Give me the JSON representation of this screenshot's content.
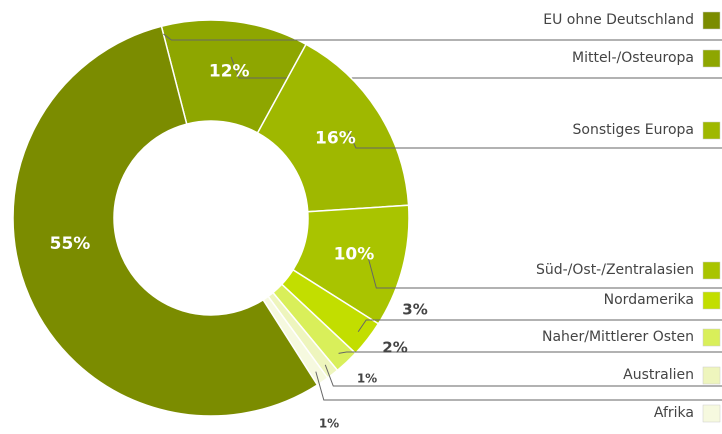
{
  "chart_data": {
    "type": "donut",
    "categories": [
      "EU ohne Deutschland",
      "Mittel-/Osteuropa",
      "Sonstiges Europa",
      "Süd-/Ost-/Zentralasien",
      "Nordamerika",
      "Naher/Mittlerer Osten",
      "Australien",
      "Afrika"
    ],
    "values": [
      55,
      12,
      16,
      10,
      3,
      2,
      1,
      1
    ],
    "value_labels": [
      "55%",
      "12%",
      "16%",
      "10%",
      "3%",
      "2%",
      "1%",
      "1%"
    ],
    "colors": [
      "#7b8c00",
      "#8ea600",
      "#9fb800",
      "#a9c400",
      "#c2de00",
      "#d9ef5a",
      "#eef5bd",
      "#f6f9df"
    ]
  }
}
